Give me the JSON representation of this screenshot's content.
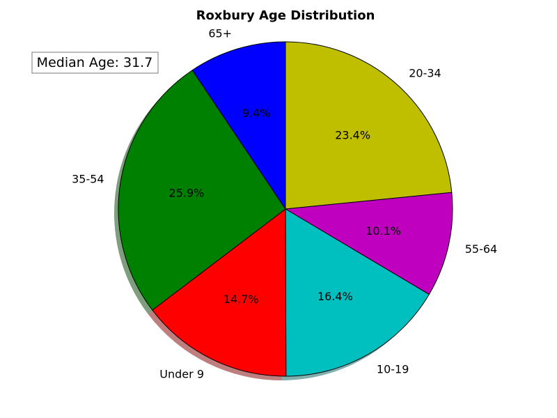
{
  "chart_data": {
    "type": "pie",
    "title": "Roxbury Age Distribution",
    "annotation": "Median Age: 31.7",
    "categories": [
      "20-34",
      "55-64",
      "10-19",
      "Under 9",
      "35-54",
      "65+"
    ],
    "values": [
      23.4,
      10.1,
      16.4,
      14.7,
      25.9,
      9.4
    ],
    "percent_labels": [
      "23.4%",
      "10.1%",
      "16.4%",
      "14.7%",
      "25.9%",
      "9.4%"
    ],
    "colors": [
      "#bfbf00",
      "#bf00bf",
      "#00bfbf",
      "#ff0000",
      "#008000",
      "#0000ff"
    ],
    "start": "top",
    "direction": "clockwise",
    "shadow": true
  }
}
